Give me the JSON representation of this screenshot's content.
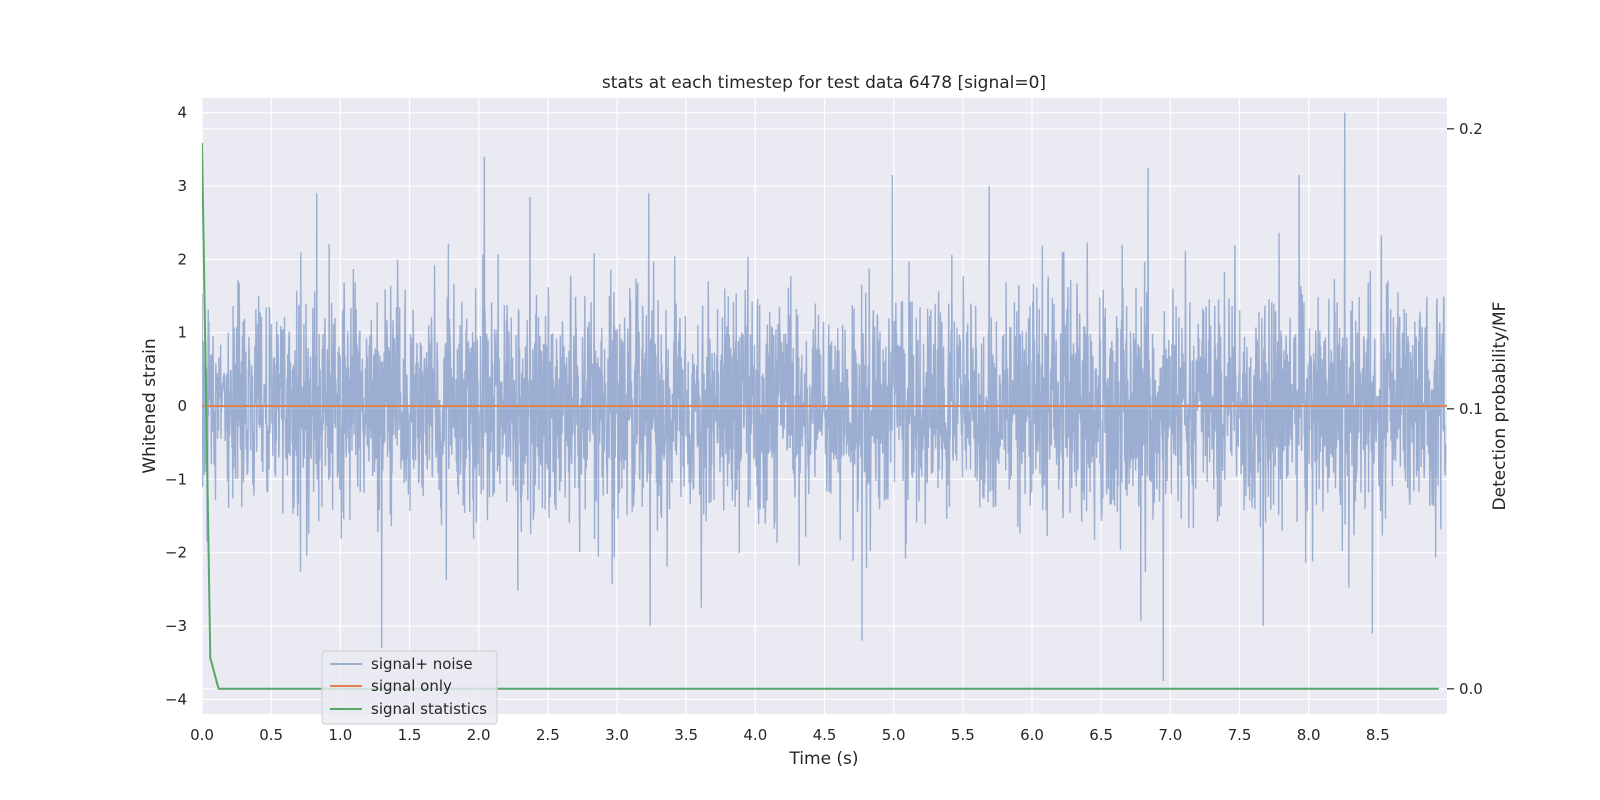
{
  "chart_data": {
    "type": "line",
    "title": "stats at each timestep for test data 6478 [signal=0]",
    "xlabel": "Time (s)",
    "ylabel": "Whitened strain",
    "y2label": "Detection probability/MF",
    "xlim": [
      0.0,
      9.0
    ],
    "ylim": [
      -4.2,
      4.2
    ],
    "y2lim": [
      -0.009,
      0.211
    ],
    "x_ticks": [
      "0.0",
      "0.5",
      "1.0",
      "1.5",
      "2.0",
      "2.5",
      "3.0",
      "3.5",
      "4.0",
      "4.5",
      "5.0",
      "5.5",
      "6.0",
      "6.5",
      "7.0",
      "7.5",
      "8.0",
      "8.5"
    ],
    "y_ticks": [
      "4",
      "3",
      "2",
      "1",
      "0",
      "−1",
      "−2",
      "−3",
      "−4"
    ],
    "y2_ticks": [
      "0.2",
      "0.1",
      "0.0"
    ],
    "grid": true,
    "legend_placement": "lower-left",
    "series": [
      {
        "name": "signal+ noise",
        "axis": "left",
        "color": "#4c72b0",
        "description_range": [
          -3.8,
          4.0
        ],
        "peaks": [
          {
            "x": 0.83,
            "y": 2.9
          },
          {
            "x": 1.3,
            "y": -3.3
          },
          {
            "x": 2.04,
            "y": 3.4
          },
          {
            "x": 2.37,
            "y": 2.85
          },
          {
            "x": 3.23,
            "y": 2.9
          },
          {
            "x": 3.24,
            "y": -3.0
          },
          {
            "x": 4.77,
            "y": -3.2
          },
          {
            "x": 4.99,
            "y": 3.15
          },
          {
            "x": 5.69,
            "y": 3.0
          },
          {
            "x": 6.84,
            "y": 3.25
          },
          {
            "x": 6.95,
            "y": -3.75
          },
          {
            "x": 7.93,
            "y": 3.15
          },
          {
            "x": 8.26,
            "y": 4.0
          },
          {
            "x": 8.46,
            "y": -3.1
          }
        ]
      },
      {
        "name": "signal only",
        "axis": "left",
        "color": "#dd8452",
        "x": [
          0.0,
          9.0
        ],
        "y": [
          0.0,
          0.0
        ]
      },
      {
        "name": "signal statistics",
        "axis": "right",
        "color": "#55a868",
        "x": [
          0.0,
          0.06,
          0.12,
          0.5,
          1.0,
          2.0,
          3.0,
          4.0,
          5.0,
          6.0,
          7.0,
          8.0,
          8.94
        ],
        "y": [
          0.195,
          0.011,
          0.0,
          0.0,
          0.0,
          0.0,
          0.0,
          0.0,
          0.0,
          0.0,
          0.0,
          0.0,
          0.0
        ]
      }
    ]
  }
}
